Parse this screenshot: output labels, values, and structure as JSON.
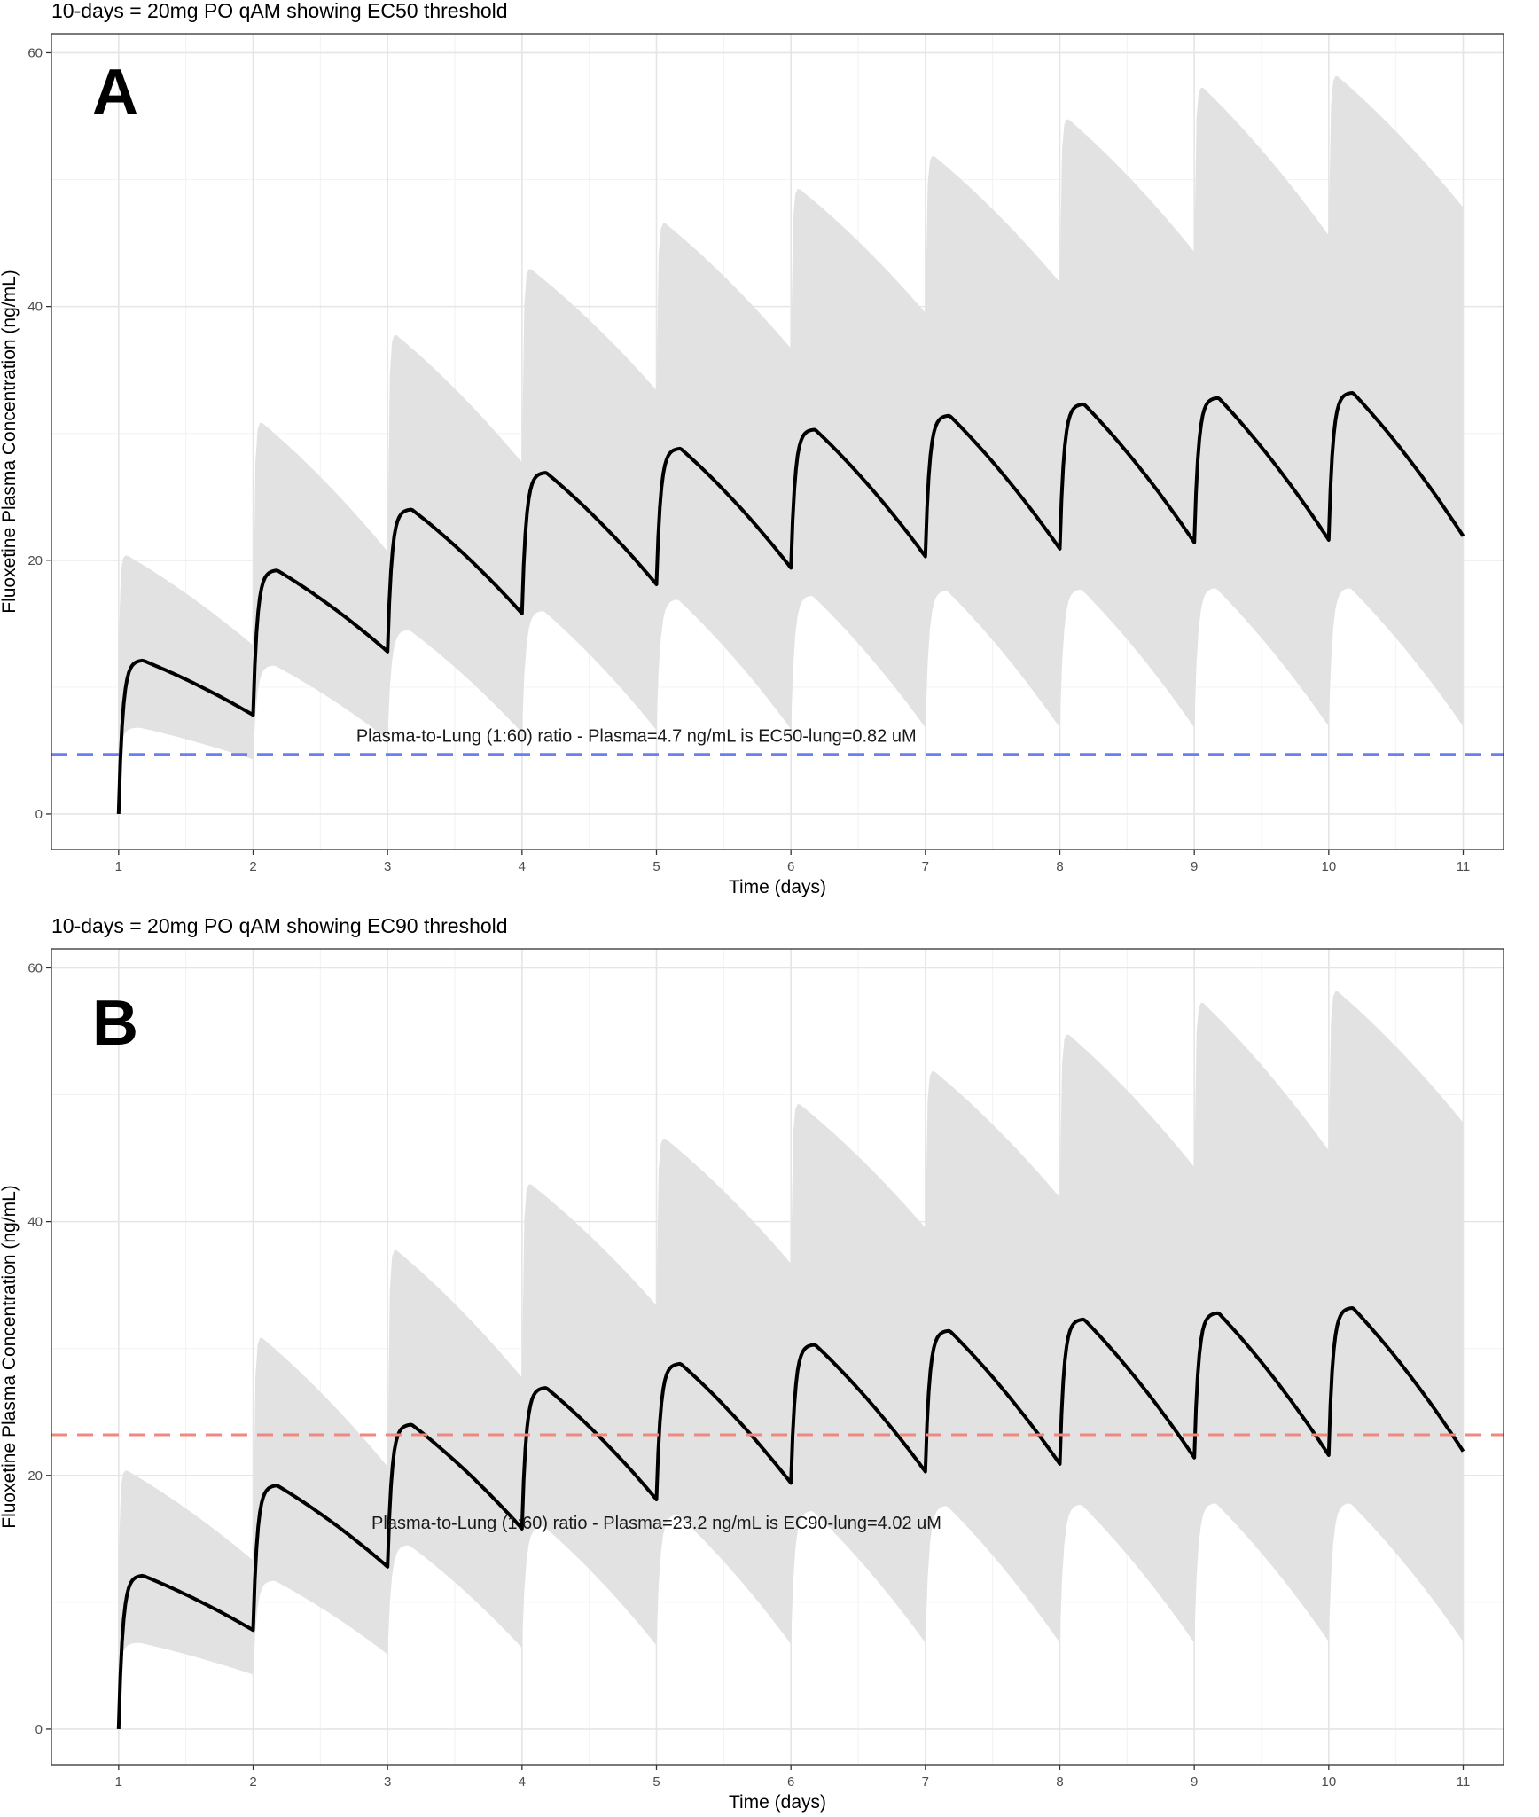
{
  "chart_data": [
    {
      "type": "line",
      "panel_label": "A",
      "title": "10-days = 20mg PO qAM showing EC50 threshold",
      "xlabel": "Time (days)",
      "ylabel": "Fluoxetine Plasma Concentration (ng/mL)",
      "xlim": [
        0.5,
        11.3
      ],
      "ylim": [
        -2.8,
        61.5
      ],
      "x_ticks": [
        1,
        2,
        3,
        4,
        5,
        6,
        7,
        8,
        9,
        10,
        11
      ],
      "y_ticks": [
        0,
        20,
        40,
        60
      ],
      "grid": true,
      "dose_times": [
        1,
        2,
        3,
        4,
        5,
        6,
        7,
        8,
        9,
        10
      ],
      "end_time": 11,
      "series": [
        {
          "kind": "median",
          "color": "#000000",
          "peaks": [
            12.1,
            19.2,
            24.0,
            26.9,
            28.8,
            30.3,
            31.4,
            32.3,
            32.8,
            33.2
          ],
          "troughs": [
            7.8,
            12.8,
            15.8,
            18.1,
            19.4,
            20.3,
            20.9,
            21.4,
            21.6,
            21.9
          ]
        },
        {
          "kind": "ribbon-upper",
          "color": "#e2e2e2",
          "peaks": [
            20.4,
            30.9,
            37.8,
            43.0,
            46.6,
            49.3,
            51.9,
            54.8,
            57.3,
            58.2
          ],
          "troughs": [
            13.3,
            20.7,
            27.7,
            33.4,
            36.7,
            39.5,
            41.9,
            44.3,
            45.6,
            47.8
          ]
        },
        {
          "kind": "ribbon-lower",
          "color": "#e2e2e2",
          "peaks": [
            6.8,
            11.7,
            14.5,
            16.0,
            16.9,
            17.2,
            17.6,
            17.7,
            17.8,
            17.8
          ],
          "troughs": [
            4.3,
            5.9,
            6.4,
            6.6,
            6.7,
            6.8,
            6.8,
            6.8,
            6.9,
            6.9
          ]
        }
      ],
      "threshold": {
        "value": 4.7,
        "color": "#6a7ff2",
        "label": "Plasma-to-Lung (1:60) ratio - Plasma=4.7 ng/mL is EC50-lung=0.82 uM",
        "label_x": 4.85,
        "label_y": 5.7
      }
    },
    {
      "type": "line",
      "panel_label": "B",
      "title": "10-days = 20mg PO qAM showing EC90 threshold",
      "xlabel": "Time (days)",
      "ylabel": "Fluoxetine Plasma Concentration (ng/mL)",
      "xlim": [
        0.5,
        11.3
      ],
      "ylim": [
        -2.8,
        61.5
      ],
      "x_ticks": [
        1,
        2,
        3,
        4,
        5,
        6,
        7,
        8,
        9,
        10,
        11
      ],
      "y_ticks": [
        0,
        20,
        40,
        60
      ],
      "grid": true,
      "dose_times": [
        1,
        2,
        3,
        4,
        5,
        6,
        7,
        8,
        9,
        10
      ],
      "end_time": 11,
      "series": [
        {
          "kind": "median",
          "color": "#000000",
          "peaks": [
            12.1,
            19.2,
            24.0,
            26.9,
            28.8,
            30.3,
            31.4,
            32.3,
            32.8,
            33.2
          ],
          "troughs": [
            7.8,
            12.8,
            15.8,
            18.1,
            19.4,
            20.3,
            20.9,
            21.4,
            21.6,
            21.9
          ]
        },
        {
          "kind": "ribbon-upper",
          "color": "#e2e2e2",
          "peaks": [
            20.4,
            30.9,
            37.8,
            43.0,
            46.6,
            49.3,
            51.9,
            54.8,
            57.3,
            58.2
          ],
          "troughs": [
            13.3,
            20.7,
            27.7,
            33.4,
            36.7,
            39.5,
            41.9,
            44.3,
            45.6,
            47.8
          ]
        },
        {
          "kind": "ribbon-lower",
          "color": "#e2e2e2",
          "peaks": [
            6.8,
            11.7,
            14.5,
            16.0,
            16.9,
            17.2,
            17.6,
            17.7,
            17.8,
            17.8
          ],
          "troughs": [
            4.3,
            5.9,
            6.4,
            6.6,
            6.7,
            6.8,
            6.8,
            6.8,
            6.9,
            6.9
          ]
        }
      ],
      "threshold": {
        "value": 23.2,
        "color": "#f08880",
        "label": "Plasma-to-Lung (1:60) ratio - Plasma=23.2 ng/mL is EC90-lung=4.02 uM",
        "label_x": 5.0,
        "label_y": 15.8
      }
    }
  ]
}
